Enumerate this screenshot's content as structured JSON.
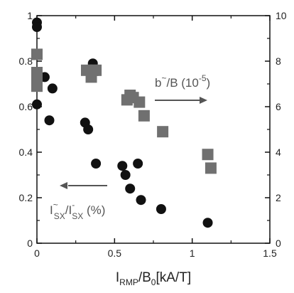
{
  "chart_data": {
    "type": "scatter",
    "title": "",
    "xlabel_parts": {
      "main": "I",
      "sub": "RMP",
      "rest": "/B",
      "sub2": "0",
      "tail": "[kA/T]"
    },
    "xlim": [
      0,
      1.5
    ],
    "ylim_left": [
      0,
      1
    ],
    "ylim_right": [
      0,
      10
    ],
    "x_ticks": [
      "0",
      "0.5",
      "1",
      "1.5"
    ],
    "y_left_ticks": [
      "0",
      "0.2",
      "0.4",
      "0.6",
      "0.8",
      "1"
    ],
    "y_right_ticks": [
      "0",
      "2",
      "4",
      "6",
      "8",
      "10"
    ],
    "grid": false,
    "series": [
      {
        "axis": "left",
        "marker": "circle",
        "color": "#111111",
        "x": [
          0.0,
          0.0,
          0.0,
          0.05,
          0.1,
          0.08,
          0.31,
          0.33,
          0.36,
          0.38,
          0.55,
          0.57,
          0.6,
          0.65,
          0.67,
          0.8,
          1.1
        ],
        "y": [
          0.97,
          0.95,
          0.61,
          0.73,
          0.68,
          0.54,
          0.53,
          0.5,
          0.79,
          0.35,
          0.34,
          0.3,
          0.24,
          0.35,
          0.19,
          0.15,
          0.09
        ]
      },
      {
        "axis": "right",
        "marker": "square",
        "color": "#707070",
        "x": [
          0.0,
          0.0,
          0.0,
          0.0,
          0.32,
          0.35,
          0.36,
          0.38,
          0.58,
          0.6,
          0.62,
          0.66,
          0.69,
          0.81,
          1.1,
          1.12
        ],
        "y": [
          8.3,
          7.5,
          7.2,
          6.9,
          7.6,
          7.3,
          7.6,
          7.6,
          6.3,
          6.5,
          6.4,
          6.2,
          5.6,
          4.9,
          3.9,
          3.3
        ]
      }
    ],
    "annotations": {
      "right_series": {
        "main": "b",
        "sup": "~",
        "rest": "/B (10",
        "exp": "-5",
        "close": ")"
      },
      "left_series": {
        "main": "I",
        "sup1": "~",
        "sub1": "SX",
        "mid": "/I",
        "sup2": "-",
        "sub2": "SX",
        "close": " (%)"
      }
    }
  }
}
